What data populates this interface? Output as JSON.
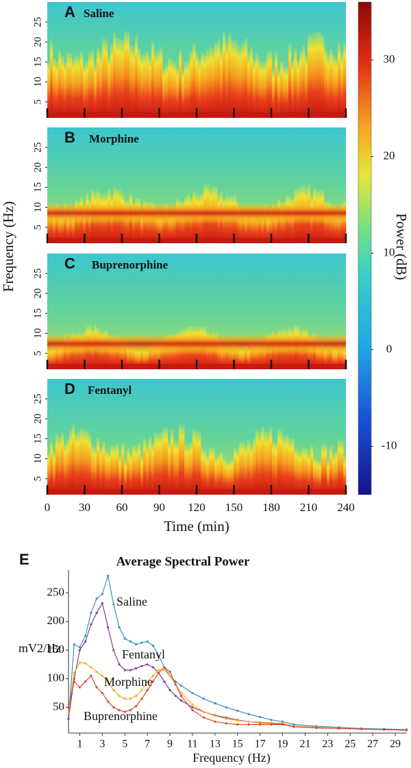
{
  "chart_data": [
    {
      "type": "spectrogram",
      "panels": [
        {
          "label": "A",
          "name": "Saline"
        },
        {
          "label": "B",
          "name": "Morphine"
        },
        {
          "label": "C",
          "name": "Buprenorphine"
        },
        {
          "label": "D",
          "name": "Fentanyl"
        }
      ],
      "ylabel": "Frequency (Hz)",
      "ylim": [
        1,
        30
      ],
      "yticks": [
        5,
        10,
        15,
        20,
        25
      ],
      "xlabel": "Time (min)",
      "xlim": [
        0,
        240
      ],
      "xticks": [
        0,
        30,
        60,
        90,
        120,
        150,
        180,
        210,
        240
      ],
      "colorbar_label": "Power (dB)",
      "clim": [
        -15,
        36
      ],
      "cticks": [
        -10,
        0,
        10,
        20,
        30
      ]
    },
    {
      "type": "line",
      "panel_label": "E",
      "title": "Average Spectral Power",
      "ylabel": "mV2/Hz",
      "xlabel": "Frequency (Hz)",
      "xlim": [
        0,
        30
      ],
      "xticks": [
        1,
        3,
        5,
        7,
        9,
        11,
        13,
        15,
        17,
        19,
        21,
        23,
        25,
        27,
        29
      ],
      "ylim": [
        5,
        290
      ],
      "yticks": [
        50,
        100,
        150,
        200,
        250
      ],
      "x": [
        0,
        0.5,
        1,
        1.5,
        2,
        2.5,
        3,
        3.5,
        4,
        4.5,
        5,
        5.5,
        6,
        6.5,
        7,
        7.5,
        8,
        8.5,
        9,
        9.5,
        10,
        11,
        12,
        13,
        14,
        15,
        16,
        17,
        18,
        19,
        20,
        22,
        24,
        26,
        28,
        30
      ],
      "series": [
        {
          "name": "Saline",
          "color": "#3a8fc6",
          "values": [
            30,
            160,
            155,
            175,
            215,
            240,
            248,
            280,
            230,
            190,
            170,
            165,
            160,
            163,
            165,
            158,
            140,
            120,
            105,
            95,
            88,
            75,
            65,
            57,
            50,
            44,
            38,
            33,
            28,
            25,
            20,
            17,
            15,
            13,
            12,
            11
          ]
        },
        {
          "name": "Fentanyl",
          "color": "#7b3f8c",
          "values": [
            30,
            100,
            150,
            165,
            195,
            215,
            232,
            190,
            150,
            125,
            115,
            115,
            118,
            122,
            125,
            120,
            110,
            95,
            80,
            70,
            62,
            50,
            42,
            36,
            32,
            28,
            25,
            23,
            22,
            21,
            17,
            15,
            13,
            12,
            11,
            10
          ]
        },
        {
          "name": "Morphine",
          "color": "#f0b020",
          "values": [
            40,
            110,
            128,
            127,
            120,
            112,
            105,
            95,
            80,
            70,
            65,
            65,
            70,
            80,
            95,
            105,
            115,
            115,
            105,
            90,
            75,
            55,
            42,
            35,
            30,
            27,
            25,
            24,
            23,
            22,
            17,
            15,
            13,
            12,
            11,
            10
          ]
        },
        {
          "name": "Buprenorphine",
          "color": "#d9472b",
          "values": [
            50,
            95,
            85,
            95,
            105,
            85,
            75,
            60,
            50,
            45,
            42,
            45,
            52,
            65,
            80,
            95,
            110,
            120,
            112,
            90,
            70,
            45,
            32,
            25,
            22,
            20,
            20,
            20,
            20,
            20,
            16,
            14,
            13,
            12,
            11,
            10
          ]
        }
      ]
    }
  ]
}
